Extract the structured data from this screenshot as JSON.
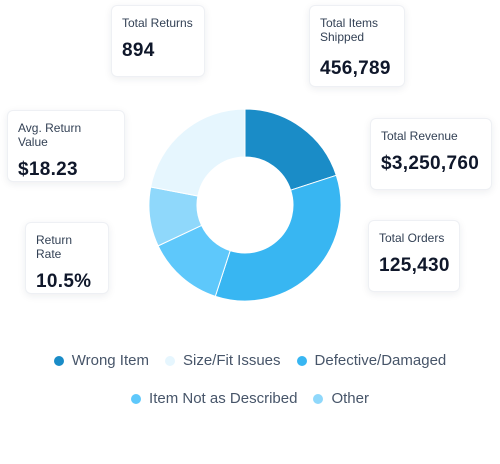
{
  "cards": {
    "total_returns": {
      "label": "Total Returns",
      "value": "894"
    },
    "items_shipped": {
      "label": "Total Items\nShipped",
      "value": "456,789"
    },
    "avg_return_value": {
      "label": "Avg. Return Value",
      "value": "$18.23"
    },
    "total_revenue": {
      "label": "Total Revenue",
      "value": "$3,250,760"
    },
    "return_rate": {
      "label": "Return Rate",
      "value": "10.5%"
    },
    "total_orders": {
      "label": "Total Orders",
      "value": "125,430"
    }
  },
  "chart_data": {
    "type": "pie",
    "donut": true,
    "categories": [
      "Wrong Item",
      "Size/Fit Issues",
      "Defective/Damaged",
      "Item Not as Described",
      "Other"
    ],
    "values": [
      20,
      22,
      35,
      13,
      10
    ],
    "colors": [
      "#1a8cc7",
      "#e6f6fe",
      "#38b6f2",
      "#5ec8fb",
      "#8fd8fb"
    ],
    "start_order": [
      0,
      2,
      3,
      4,
      1
    ],
    "legend_position": "bottom"
  }
}
